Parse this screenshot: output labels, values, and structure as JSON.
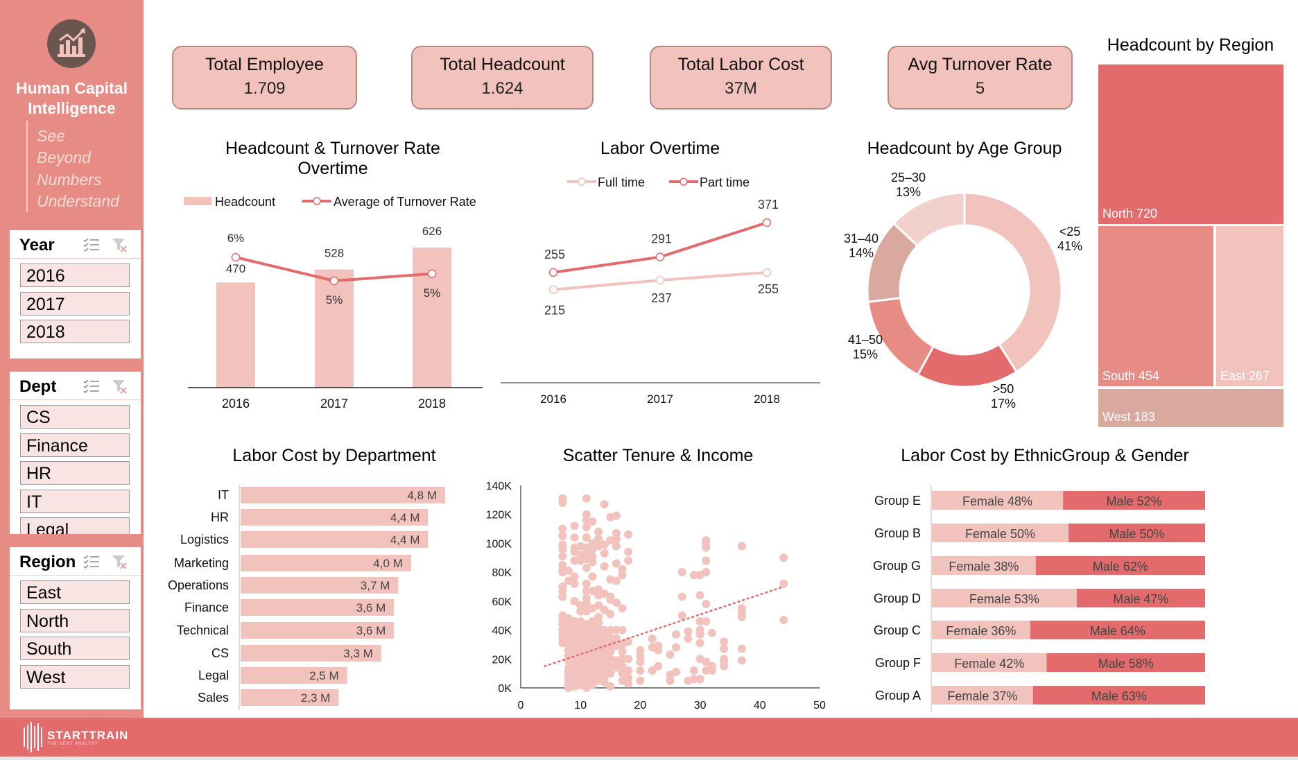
{
  "sidebar": {
    "brand_line1": "Human Capital",
    "brand_line2": "Intelligence",
    "tagline": [
      "See",
      "Beyond",
      "Numbers",
      "Understand"
    ],
    "logo_icon": "chart-growth-icon",
    "slicers": [
      {
        "title": "Year",
        "items": [
          "2016",
          "2017",
          "2018"
        ]
      },
      {
        "title": "Dept",
        "items": [
          "CS",
          "Finance",
          "HR",
          "IT",
          "Legal"
        ]
      },
      {
        "title": "Region",
        "items": [
          "East",
          "North",
          "South",
          "West"
        ]
      }
    ],
    "slicer_icons": [
      "multi-select-icon",
      "clear-filter-icon"
    ]
  },
  "kpis": [
    {
      "title": "Total Employee",
      "value": "1.709"
    },
    {
      "title": "Total Headcount",
      "value": "1.624"
    },
    {
      "title": "Total Labor Cost",
      "value": "37M"
    },
    {
      "title": "Avg Turnover Rate",
      "value": "5"
    }
  ],
  "colors": {
    "primary": "#e36b6c",
    "medium": "#e68c85",
    "light": "#f2c2bd",
    "muted": "#d9a9a0",
    "pale": "#f2d1cc"
  },
  "chart_data": [
    {
      "type": "bar",
      "title": "Headcount & Turnover Rate Overtime",
      "title_line1": "Headcount & Turnover Rate",
      "title_line2": "Overtime",
      "categories": [
        "2016",
        "2017",
        "2018"
      ],
      "series": [
        {
          "name": "Headcount",
          "type": "bar",
          "values": [
            470,
            528,
            626
          ],
          "labels": [
            "470",
            "528",
            "626"
          ]
        },
        {
          "name": "Average of Turnover Rate",
          "type": "line",
          "values": [
            5.9,
            4.9,
            5.2
          ],
          "labels": [
            "6%",
            "5%",
            "5%"
          ]
        }
      ],
      "legend": "top"
    },
    {
      "type": "line",
      "title": "Labor Overtime",
      "categories": [
        "2016",
        "2017",
        "2018"
      ],
      "series": [
        {
          "name": "Full time",
          "values": [
            215,
            237,
            255
          ],
          "labels": [
            "215",
            "237",
            "255"
          ]
        },
        {
          "name": "Part time",
          "values": [
            255,
            291,
            371
          ],
          "labels": [
            "255",
            "291",
            "371"
          ]
        }
      ],
      "legend": "top"
    },
    {
      "type": "pie",
      "title": "Headcount by Age Group",
      "donut": true,
      "slices": [
        {
          "name": "<25",
          "value": 41,
          "label": "41%"
        },
        {
          "name": ">50",
          "value": 17,
          "label": "17%"
        },
        {
          "name": "41–50",
          "value": 15,
          "label": "15%"
        },
        {
          "name": "31–40",
          "value": 14,
          "label": "14%"
        },
        {
          "name": "25–30",
          "value": 13,
          "label": "13%"
        }
      ]
    },
    {
      "type": "treemap",
      "title": "Headcount by Region",
      "items": [
        {
          "name": "North",
          "value": 720,
          "label": "North 720"
        },
        {
          "name": "South",
          "value": 454,
          "label": "South 454"
        },
        {
          "name": "East",
          "value": 267,
          "label": "East 267"
        },
        {
          "name": "West",
          "value": 183,
          "label": "West 183"
        }
      ]
    },
    {
      "type": "bar",
      "orientation": "horizontal",
      "title": "Labor Cost by Department",
      "categories": [
        "IT",
        "HR",
        "Logistics",
        "Marketing",
        "Operations",
        "Finance",
        "Technical",
        "CS",
        "Legal",
        "Sales"
      ],
      "values": [
        4.8,
        4.4,
        4.4,
        4.0,
        3.7,
        3.6,
        3.6,
        3.3,
        2.5,
        2.3
      ],
      "labels": [
        "4,8 M",
        "4,4 M",
        "4,4 M",
        "4,0 M",
        "3,7 M",
        "3,6 M",
        "3,6 M",
        "3,3 M",
        "2,5 M",
        "2,3 M"
      ]
    },
    {
      "type": "scatter",
      "title": "Scatter Tenure & Income",
      "xlim": [
        0,
        50
      ],
      "ylim": [
        0,
        140000
      ],
      "x_ticks": [
        "0",
        "10",
        "20",
        "30",
        "40",
        "50"
      ],
      "y_ticks": [
        "0K",
        "20K",
        "40K",
        "60K",
        "80K",
        "100K",
        "120K",
        "140K"
      ],
      "trendline": {
        "style": "dotted",
        "from": [
          4,
          15000
        ],
        "to": [
          44,
          70000
        ]
      },
      "points_by_tenure": [
        {
          "x": 7,
          "y_k": [
            131,
            128,
            110,
            105,
            99,
            96,
            91,
            85,
            82,
            80,
            70,
            67,
            63,
            50,
            47,
            44,
            40,
            37,
            34,
            31
          ]
        },
        {
          "x": 8,
          "y_k": [
            81,
            74,
            48,
            45,
            42,
            38,
            35,
            30,
            26,
            22,
            19,
            14,
            11,
            8,
            5,
            2,
            0
          ]
        },
        {
          "x": 9,
          "y_k": [
            112,
            104,
            97,
            94,
            88,
            77,
            72,
            60,
            46,
            43,
            40,
            36,
            32,
            28,
            24,
            20,
            16,
            12,
            8,
            4,
            1
          ]
        },
        {
          "x": 10,
          "y_k": [
            98,
            92,
            88,
            57,
            53,
            46,
            42,
            38,
            34,
            30,
            26,
            22,
            18,
            14,
            10,
            6,
            2
          ]
        },
        {
          "x": 11,
          "y_k": [
            131,
            120,
            116,
            111,
            104,
            97,
            93,
            89,
            83,
            72,
            67,
            62,
            58,
            53,
            44,
            40,
            36,
            32,
            28,
            24,
            20,
            16,
            12,
            8,
            4,
            0
          ]
        },
        {
          "x": 12,
          "y_k": [
            115,
            100,
            96,
            91,
            87,
            77,
            67,
            55,
            46,
            42,
            38,
            34,
            30,
            26,
            22,
            18,
            14,
            10,
            6,
            2
          ]
        },
        {
          "x": 13,
          "y_k": [
            108,
            103,
            98,
            68,
            64,
            57,
            49,
            45,
            41,
            37,
            33,
            29,
            25,
            21,
            17,
            13,
            9,
            5
          ]
        },
        {
          "x": 14,
          "y_k": [
            127,
            99,
            93,
            84,
            65,
            54,
            40,
            36,
            32,
            28,
            24,
            20,
            16,
            12,
            8,
            4
          ]
        },
        {
          "x": 15,
          "y_k": [
            118,
            102,
            75,
            63,
            61,
            51,
            40,
            35,
            30,
            25,
            20,
            15,
            10,
            1
          ]
        },
        {
          "x": 16,
          "y_k": [
            119,
            107,
            103,
            98,
            86,
            74,
            59,
            40,
            34,
            29,
            19,
            14
          ]
        },
        {
          "x": 17,
          "y_k": [
            82,
            78,
            55,
            40,
            30,
            25,
            20,
            15,
            10,
            5
          ]
        },
        {
          "x": 18,
          "y_k": [
            106,
            94,
            88,
            32,
            20,
            12,
            7,
            3
          ]
        },
        {
          "x": 20,
          "y_k": [
            26,
            22,
            18,
            12,
            5
          ]
        },
        {
          "x": 22,
          "y_k": [
            34,
            28,
            12
          ]
        },
        {
          "x": 23,
          "y_k": [
            29,
            26,
            15
          ]
        },
        {
          "x": 25,
          "y_k": [
            23,
            9,
            5
          ]
        },
        {
          "x": 26,
          "y_k": [
            37,
            28,
            11
          ]
        },
        {
          "x": 27,
          "y_k": [
            80,
            63,
            50
          ]
        },
        {
          "x": 28,
          "y_k": [
            39,
            34,
            5
          ]
        },
        {
          "x": 29,
          "y_k": [
            78,
            12,
            6
          ]
        },
        {
          "x": 30,
          "y_k": [
            78,
            64,
            46,
            40,
            37,
            31,
            20,
            6
          ]
        },
        {
          "x": 31,
          "y_k": [
            102,
            100,
            97,
            88,
            80,
            58,
            46,
            18,
            12
          ]
        },
        {
          "x": 32,
          "y_k": [
            38,
            15,
            12
          ]
        },
        {
          "x": 34,
          "y_k": [
            32,
            27,
            20,
            18,
            15
          ]
        },
        {
          "x": 37,
          "y_k": [
            98,
            55,
            52,
            49,
            27,
            19
          ]
        },
        {
          "x": 44,
          "y_k": [
            90,
            72,
            47
          ]
        }
      ]
    },
    {
      "type": "bar",
      "orientation": "horizontal",
      "stacked": "100%",
      "title": "Labor Cost by EthnicGroup & Gender",
      "categories": [
        "Group E",
        "Group B",
        "Group G",
        "Group D",
        "Group C",
        "Group F",
        "Group A"
      ],
      "series": [
        {
          "name": "Female",
          "values": [
            48,
            50,
            38,
            53,
            36,
            42,
            37
          ],
          "labels": [
            "Female 48%",
            "Female 50%",
            "Female 38%",
            "Female 53%",
            "Female 36%",
            "Female 42%",
            "Female 37%"
          ]
        },
        {
          "name": "Male",
          "values": [
            52,
            50,
            62,
            47,
            64,
            58,
            63
          ],
          "labels": [
            "Male 52%",
            "Male 50%",
            "Male 62%",
            "Male 47%",
            "Male 64%",
            "Male 58%",
            "Male 63%"
          ]
        }
      ]
    }
  ],
  "footer": {
    "brand": "STARTTRAIN",
    "subtitle": "THE NEXT ANALYST"
  }
}
